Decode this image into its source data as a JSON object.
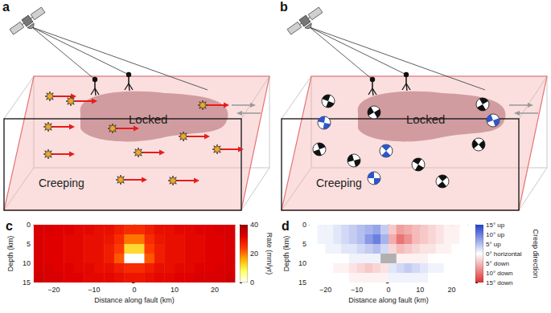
{
  "panels": {
    "a": {
      "label": "a",
      "locked": "Locked",
      "creeping": "Creeping"
    },
    "b": {
      "label": "b",
      "locked": "Locked",
      "creeping": "Creeping"
    }
  },
  "chart_data": [
    {
      "type": "heatmap",
      "title": "c",
      "xlabel": "Distance along fault (km)",
      "ylabel": "Depth (km)",
      "x_edges": [
        -25,
        -22.5,
        -20,
        -17.5,
        -15,
        -12.5,
        -10,
        -7.5,
        -5,
        -2.5,
        0,
        2.5,
        5,
        7.5,
        10,
        12.5,
        15,
        17.5,
        20,
        22.5,
        25
      ],
      "y_edges": [
        0,
        2.5,
        5,
        7.5,
        10,
        12.5,
        15
      ],
      "cells": [
        [
          33,
          33,
          32,
          32,
          31,
          31,
          30,
          30,
          28,
          26,
          26,
          28,
          30,
          30,
          31,
          31,
          32,
          32,
          33,
          33
        ],
        [
          33,
          32,
          32,
          31,
          31,
          30,
          30,
          29,
          26,
          20,
          20,
          26,
          29,
          30,
          30,
          31,
          31,
          32,
          32,
          33
        ],
        [
          33,
          32,
          32,
          31,
          31,
          30,
          30,
          28,
          24,
          12,
          12,
          24,
          28,
          30,
          30,
          31,
          31,
          32,
          32,
          33
        ],
        [
          33,
          32,
          32,
          31,
          31,
          30,
          30,
          28,
          22,
          0,
          0,
          22,
          28,
          30,
          30,
          31,
          31,
          32,
          32,
          33
        ],
        [
          33,
          33,
          32,
          32,
          31,
          31,
          30,
          30,
          28,
          26,
          26,
          28,
          30,
          30,
          31,
          31,
          32,
          32,
          33,
          33
        ],
        [
          34,
          33,
          33,
          32,
          32,
          31,
          31,
          31,
          30,
          29,
          29,
          30,
          31,
          31,
          32,
          32,
          33,
          33,
          33,
          34
        ]
      ],
      "xlim": [
        -25,
        25
      ],
      "xticks": [
        {
          "value": -20,
          "label": "−20"
        },
        {
          "value": -10,
          "label": "−10"
        },
        0,
        10,
        20
      ],
      "ylim": [
        0,
        15
      ],
      "yticks": [
        0,
        5,
        10,
        15
      ],
      "colorbar": {
        "label": "Rate (mm/yr)",
        "lim": [
          0,
          40
        ],
        "ticks": [
          0,
          20,
          40
        ]
      }
    },
    {
      "type": "heatmap",
      "title": "d",
      "xlabel": "Distance along fault (km)",
      "ylabel": "Depth (km)",
      "x_edges": [
        -25,
        -22.5,
        -20,
        -17.5,
        -15,
        -12.5,
        -10,
        -7.5,
        -5,
        -2.5,
        0,
        2.5,
        5,
        7.5,
        10,
        12.5,
        15,
        17.5,
        20,
        22.5,
        25
      ],
      "y_edges": [
        0,
        2.5,
        5,
        7.5,
        10,
        12.5,
        15
      ],
      "cells": [
        [
          0,
          1,
          1,
          2,
          3,
          4,
          5,
          6,
          7,
          4,
          -4,
          -7,
          -6,
          -5,
          -4,
          -3,
          -2,
          -1,
          -1,
          0
        ],
        [
          0,
          1,
          1,
          2,
          3,
          4,
          5,
          8,
          10,
          6,
          -6,
          -10,
          -8,
          -5,
          -4,
          -3,
          -2,
          -1,
          -1,
          0
        ],
        [
          0,
          0,
          1,
          1,
          2,
          2,
          3,
          4,
          5,
          3,
          -3,
          -5,
          -4,
          -3,
          -2,
          -2,
          -1,
          -1,
          0,
          0
        ],
        [
          0,
          0,
          0,
          0,
          0,
          1,
          1,
          1,
          1,
          null,
          null,
          -1,
          -1,
          -1,
          -1,
          0,
          0,
          0,
          0,
          0
        ],
        [
          0,
          0,
          0,
          -1,
          -1,
          -2,
          -3,
          -4,
          -3,
          -2,
          2,
          3,
          4,
          3,
          2,
          1,
          1,
          0,
          0,
          0
        ],
        [
          0,
          0,
          0,
          0,
          0,
          -1,
          -1,
          -1,
          -1,
          -1,
          1,
          1,
          1,
          1,
          1,
          0,
          0,
          0,
          0,
          0
        ]
      ],
      "xlim": [
        -25,
        25
      ],
      "xticks": [
        {
          "value": -20,
          "label": "−20"
        },
        {
          "value": -10,
          "label": "−10"
        },
        0,
        10,
        20
      ],
      "ylim": [
        0,
        15
      ],
      "yticks": [
        0,
        5,
        10,
        15
      ],
      "colorbar": {
        "label": "Creep direction",
        "lim": [
          -15,
          15
        ],
        "ticks": [
          {
            "value": 15,
            "label": "15° up"
          },
          {
            "value": 10,
            "label": "10° up"
          },
          {
            "value": 5,
            "label": "5° up"
          },
          {
            "value": 0,
            "label": "0° horizontal"
          },
          {
            "value": -5,
            "label": "5° down"
          },
          {
            "value": -10,
            "label": "10° down"
          },
          {
            "value": -15,
            "label": "15° down"
          }
        ]
      }
    }
  ]
}
